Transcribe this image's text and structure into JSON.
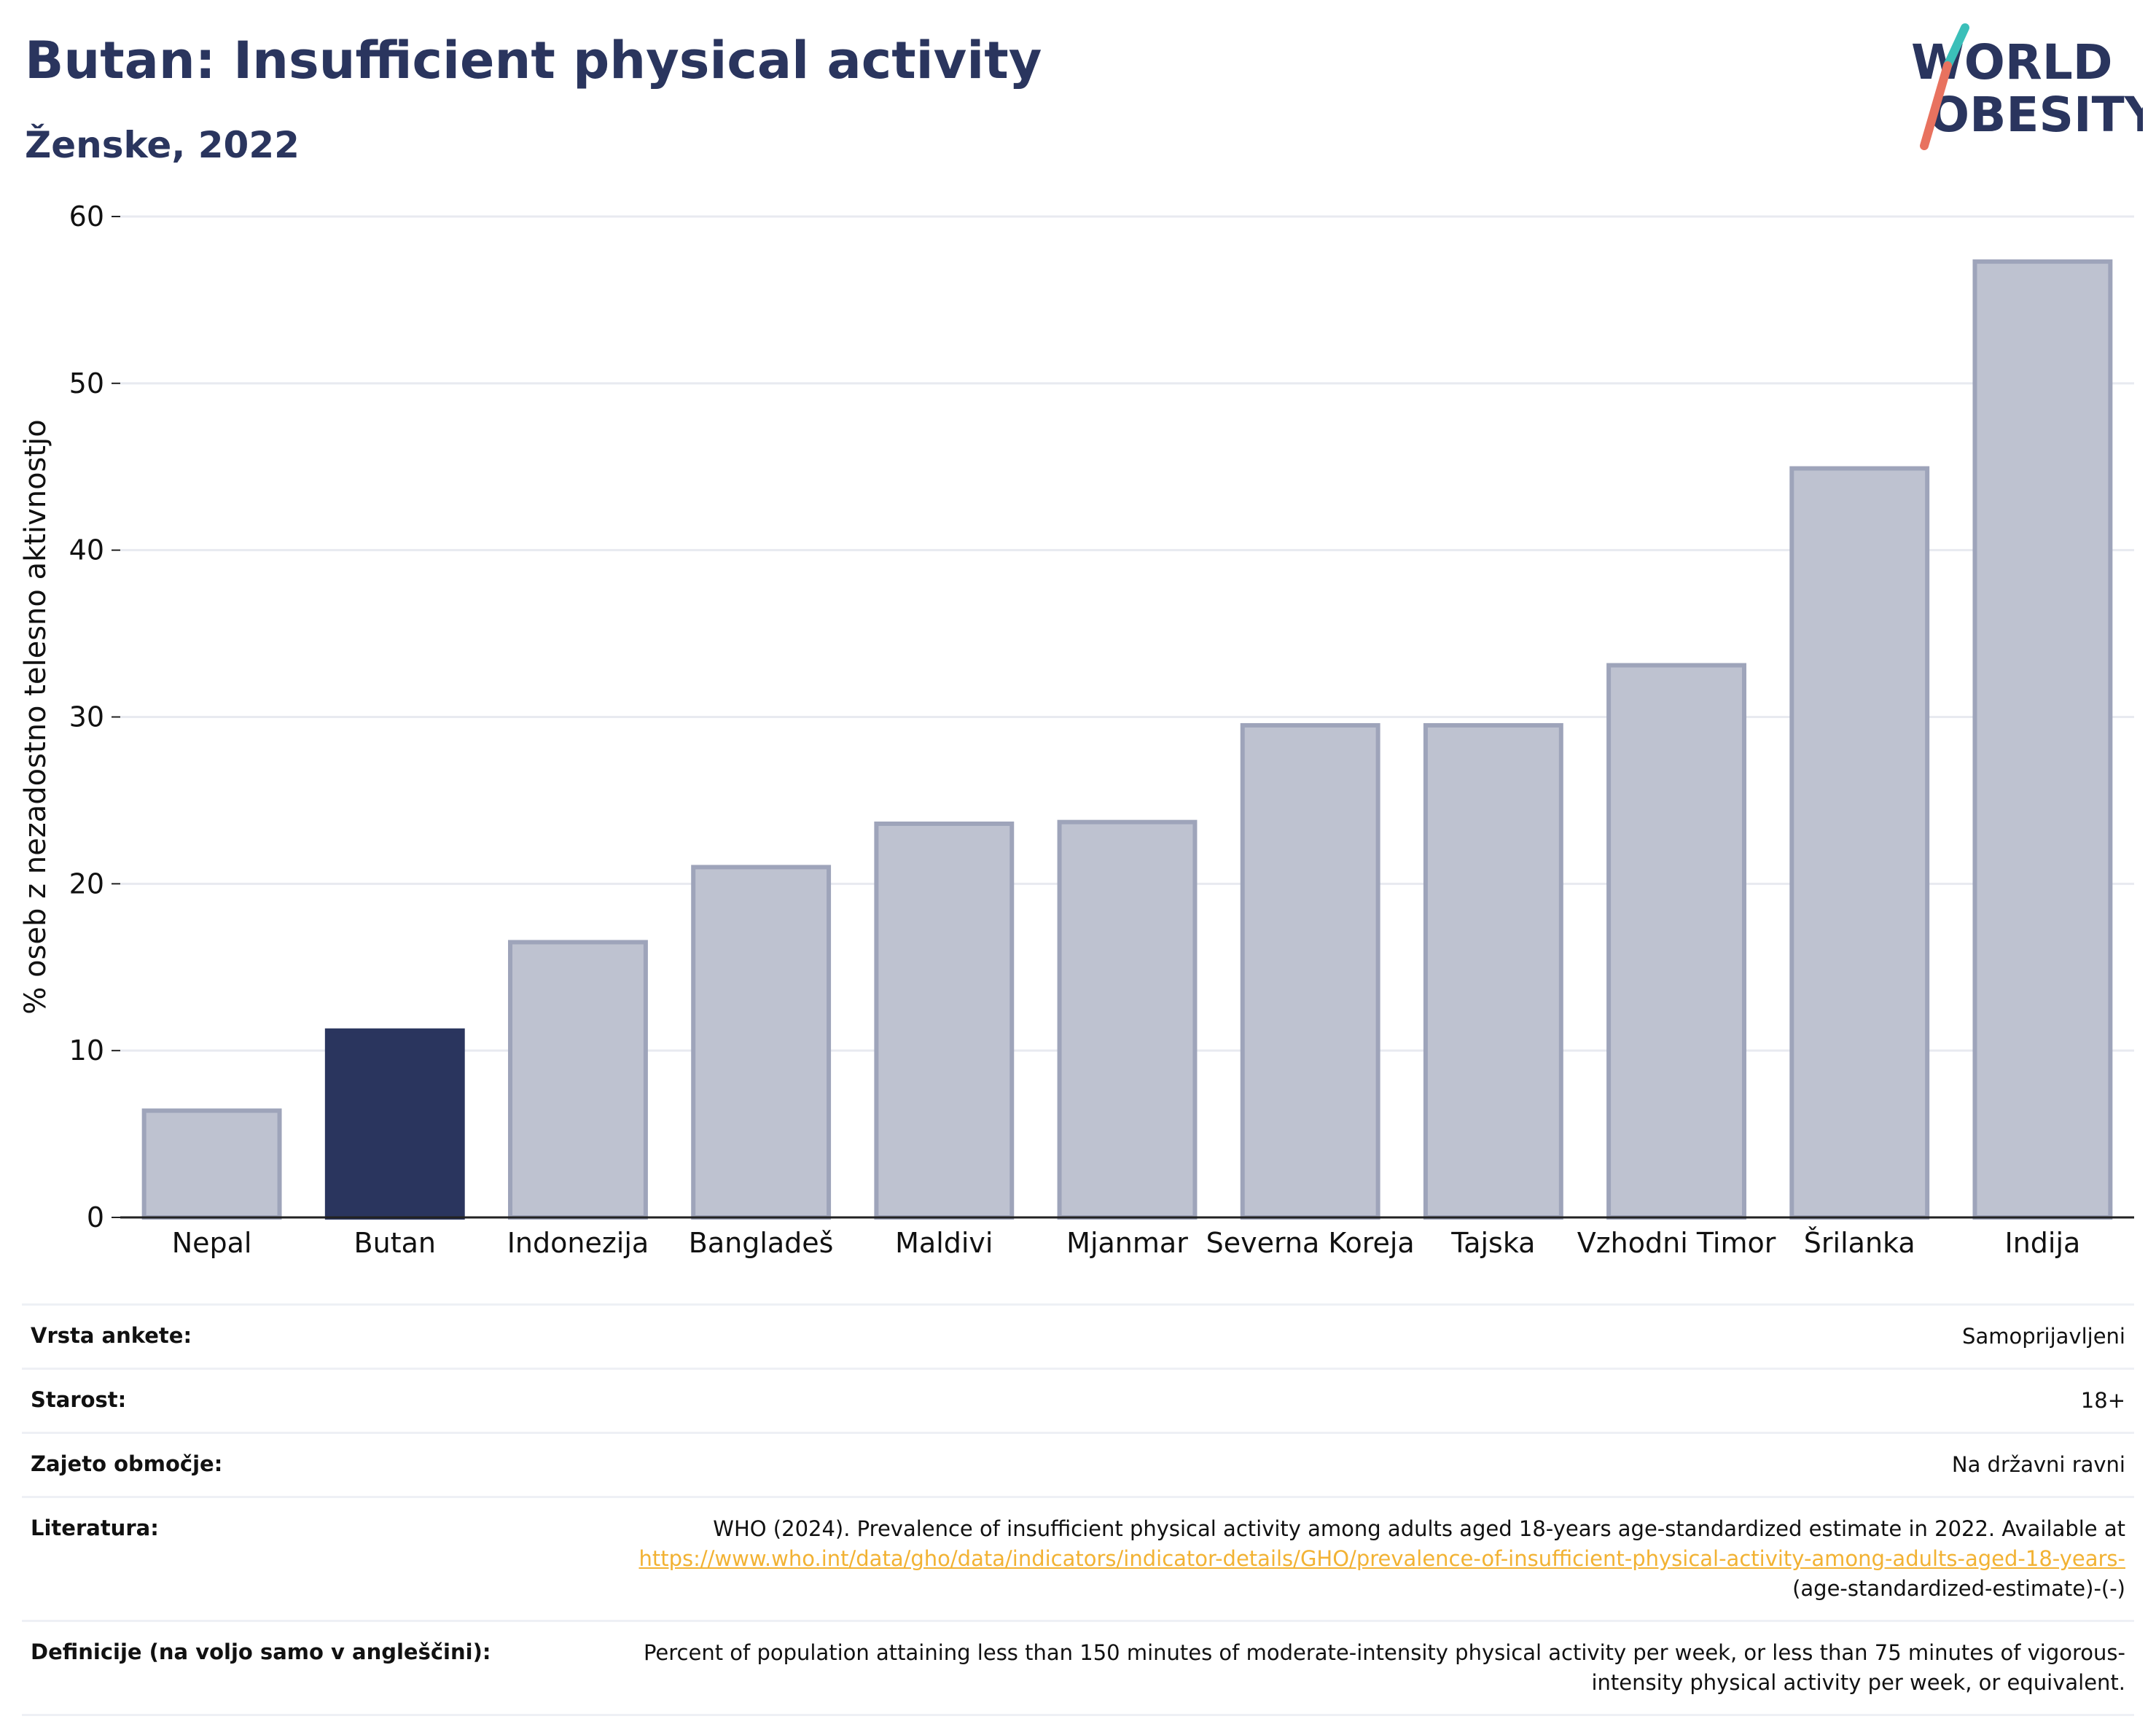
{
  "header": {
    "title": "Butan: Insufficient physical activity",
    "subtitle": "Ženske, 2022"
  },
  "logo": {
    "line1": "WORLD",
    "line2": "OBESITY"
  },
  "colors": {
    "highlight": "#2a355e",
    "bar": "#bec2d0",
    "bar_stroke": "#9ea4ba",
    "title": "#2a355e",
    "grid": "#e8eaf0",
    "link": "#f2b233",
    "logo_teal": "#3bbfb9",
    "logo_coral": "#e8725f"
  },
  "chart_data": {
    "type": "bar",
    "title": "Butan: Insufficient physical activity",
    "subtitle": "Ženske, 2022",
    "xlabel": "",
    "ylabel": "% oseb z nezadostno telesno aktivnostjo",
    "categories": [
      "Nepal",
      "Butan",
      "Indonezija",
      "Bangladeš",
      "Maldivi",
      "Mjanmar",
      "Severna Koreja",
      "Tajska",
      "Vzhodni Timor",
      "Šrilanka",
      "Indija"
    ],
    "values": [
      6.4,
      11.2,
      16.5,
      21.0,
      23.6,
      23.7,
      29.5,
      29.5,
      33.1,
      44.9,
      57.3
    ],
    "highlight": "Butan",
    "ylim": [
      0,
      60
    ],
    "yticks": [
      0,
      10,
      20,
      30,
      40,
      50,
      60
    ],
    "grid": true
  },
  "meta": [
    {
      "label": "Vrsta ankete:",
      "value": "Samoprijavljeni"
    },
    {
      "label": "Starost:",
      "value": "18+"
    },
    {
      "label": "Zajeto območje:",
      "value": "Na državni ravni"
    },
    {
      "label": "Literatura:",
      "value": "WHO (2024). Prevalence of insufficient physical activity among adults aged 18-years age-standardized estimate in 2022. Available at",
      "link": "https://www.who.int/data/gho/data/indicators/indicator-details/GHO/prevalence-of-insufficient-physical-activity-among-adults-aged-18-years-",
      "suffix": "(age-standardized-estimate)-(-)"
    },
    {
      "label": "Definicije (na voljo samo v angleščini):",
      "value": "Percent of population attaining less than 150 minutes of moderate-intensity physical activity per week, or less than 75 minutes of vigorous-intensity physical activity per week, or equivalent."
    }
  ]
}
